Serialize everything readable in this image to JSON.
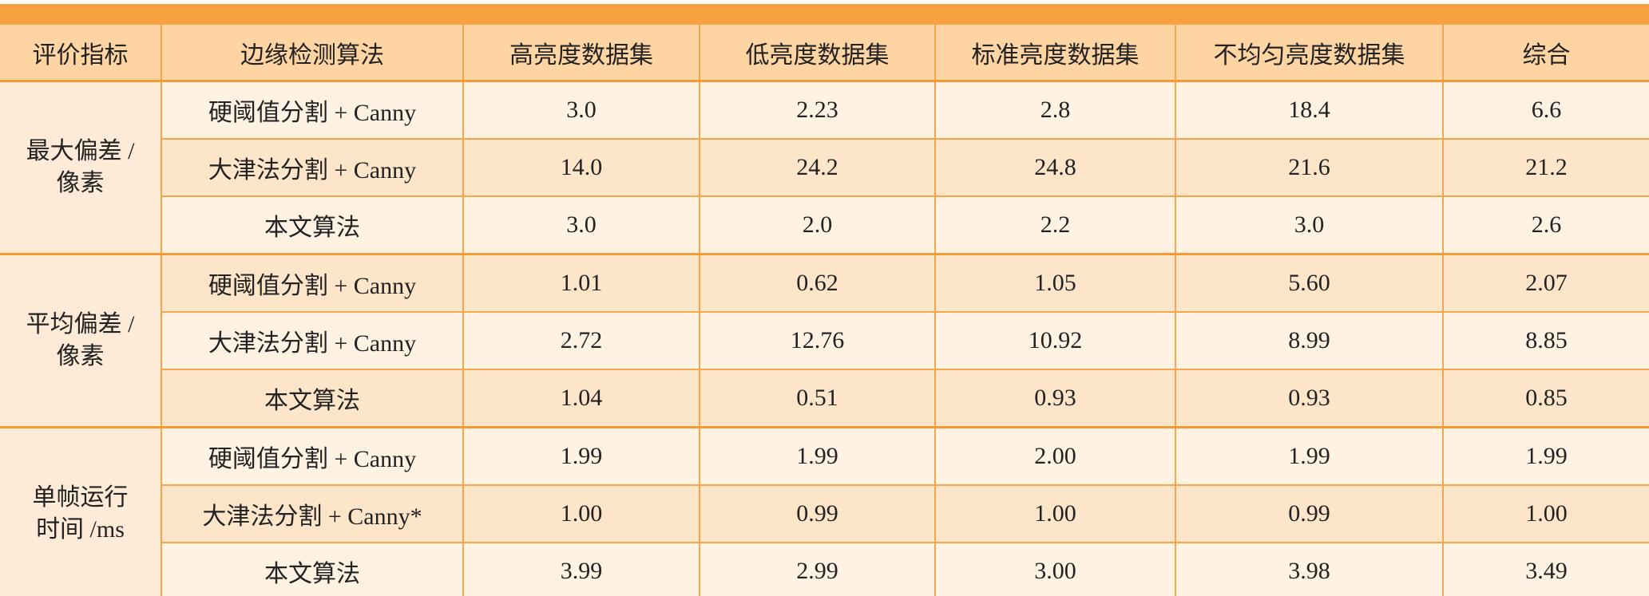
{
  "header": {
    "columns": [
      "评价指标",
      "边缘检测算法",
      "高亮度数据集",
      "低亮度数据集",
      "标准亮度数据集",
      "不均匀亮度数据集",
      "综合"
    ]
  },
  "table": {
    "groups": [
      {
        "metric": "最大偏差 /\n像素",
        "rows": [
          [
            "硬阈值分割 + Canny",
            "3.0",
            "2.23",
            "2.8",
            "18.4",
            "6.6"
          ],
          [
            "大津法分割 + Canny",
            "14.0",
            "24.2",
            "24.8",
            "21.6",
            "21.2"
          ],
          [
            "本文算法",
            "3.0",
            "2.0",
            "2.2",
            "3.0",
            "2.6"
          ]
        ]
      },
      {
        "metric": "平均偏差 /\n像素",
        "rows": [
          [
            "硬阈值分割 + Canny",
            "1.01",
            "0.62",
            "1.05",
            "5.60",
            "2.07"
          ],
          [
            "大津法分割 + Canny",
            "2.72",
            "12.76",
            "10.92",
            "8.99",
            "8.85"
          ],
          [
            "本文算法",
            "1.04",
            "0.51",
            "0.93",
            "0.93",
            "0.85"
          ]
        ]
      },
      {
        "metric": "单帧运行\n时间 /ms",
        "rows": [
          [
            "硬阈值分割 + Canny",
            "1.99",
            "1.99",
            "2.00",
            "1.99",
            "1.99"
          ],
          [
            "大津法分割 + Canny*",
            "1.00",
            "0.99",
            "1.00",
            "0.99",
            "1.00"
          ],
          [
            "本文算法",
            "3.99",
            "2.99",
            "3.00",
            "3.98",
            "3.49"
          ]
        ]
      }
    ]
  }
}
